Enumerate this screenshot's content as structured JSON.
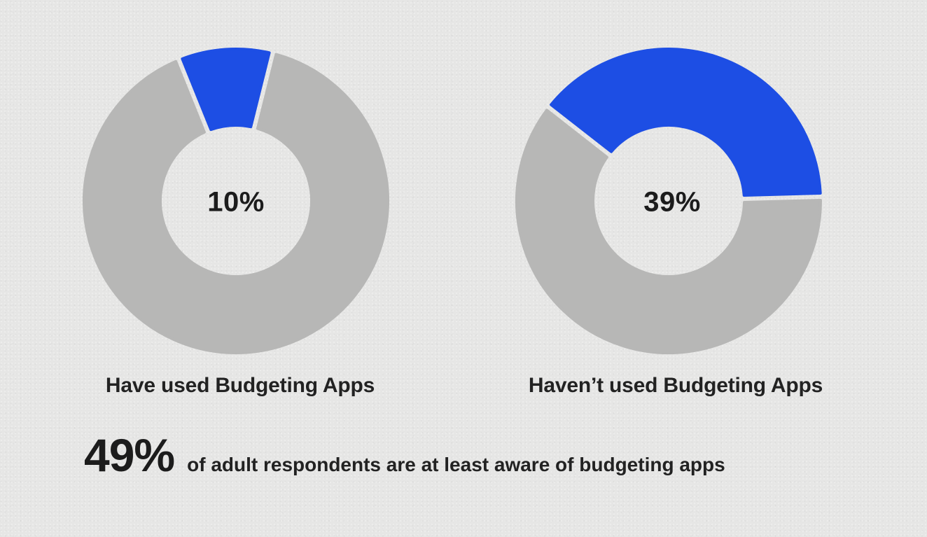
{
  "colors": {
    "background": "#e6e6e5",
    "highlight": "#1d4ee4",
    "remainder": "#b7b7b6",
    "text": "#1c1c1c"
  },
  "chart_data": [
    {
      "type": "pie",
      "subtype": "donut",
      "title": "Have used Budgeting Apps",
      "center_label": "10%",
      "categories": [
        "Have used Budgeting Apps",
        "Other"
      ],
      "values": [
        10,
        90
      ],
      "highlight_index": 0
    },
    {
      "type": "pie",
      "subtype": "donut",
      "title": "Haven’t used Budgeting Apps",
      "center_label": "39%",
      "categories": [
        "Haven’t used Budgeting Apps",
        "Other"
      ],
      "values": [
        39,
        61
      ],
      "highlight_index": 0
    }
  ],
  "summary": {
    "value": "49%",
    "text": "of adult respondents are at least aware of budgeting apps"
  }
}
